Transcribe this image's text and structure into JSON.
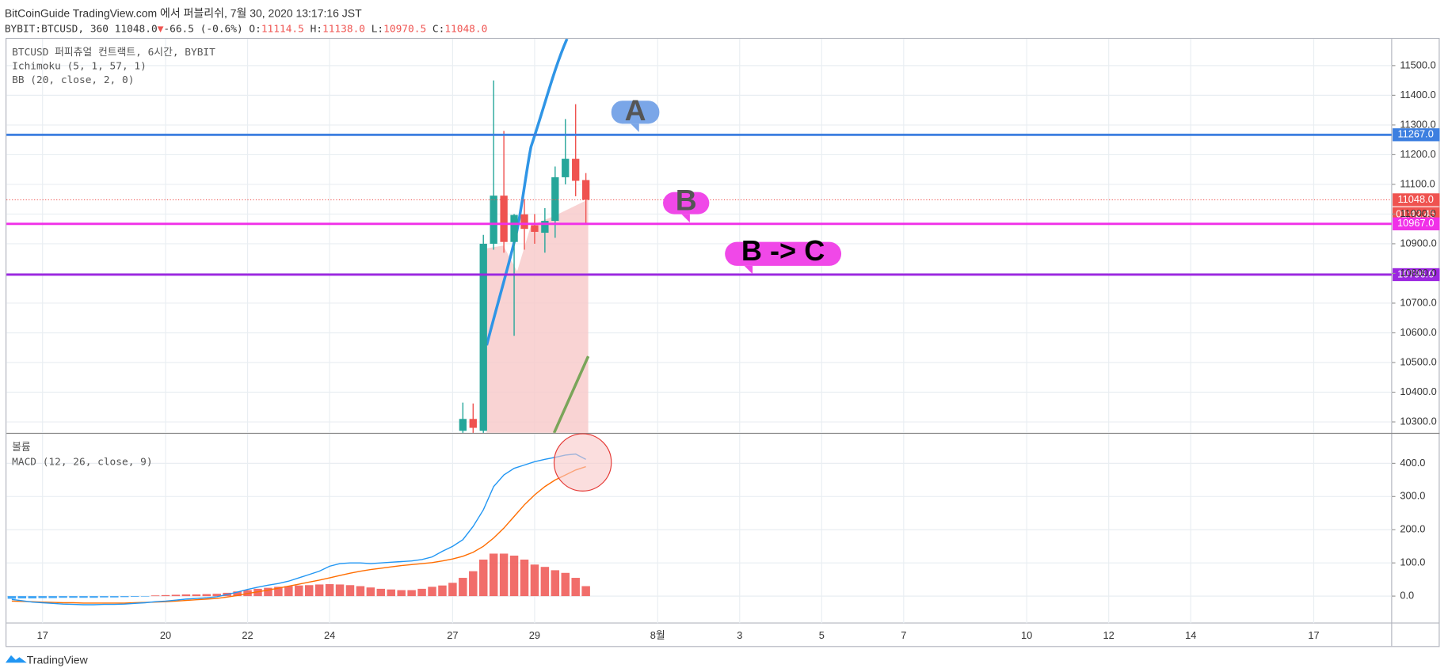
{
  "header": {
    "line1": "BitCoinGuide TradingView.com 에서 퍼블리쉬, 7월 30, 2020 13:17:16 JST",
    "symbol": "BYBIT:BTCUSD, 360 11048.0",
    "arrow": "▼",
    "change": "-66.5 (-0.6%)",
    "o_label": "O:",
    "o": "11114.5",
    "h_label": "H:",
    "h": "11138.0",
    "l_label": "L:",
    "l": "10970.5",
    "c_label": "C:",
    "c": "11048.0"
  },
  "legend": [
    "BTCUSD 퍼피츄얼 컨트랙트, 6시간, BYBIT",
    "Ichimoku (5, 1, 57, 1)",
    "BB (20, close, 2, 0)"
  ],
  "annotations": [
    "A",
    "B",
    "B -> C"
  ],
  "footer": "TradingView",
  "chart_data": {
    "type": "candlestick",
    "up_color": "#26a69a",
    "down_color": "#ef5350",
    "grid": true,
    "x": [
      27.25,
      27.5,
      27.75,
      28,
      28.25,
      28.5,
      28.75,
      29,
      29.25,
      29.5,
      29.75,
      30,
      30.25
    ],
    "open": [
      10270,
      10310,
      10270,
      10900,
      11062,
      10906,
      10999,
      10962,
      10937,
      10977,
      11124,
      11186,
      11114.5
    ],
    "high": [
      10365,
      10362,
      10930,
      11450,
      11280,
      11000,
      11050,
      11000,
      11020,
      11160,
      11320,
      11370,
      11138
    ],
    "low": [
      10250,
      10240,
      10250,
      10880,
      10870,
      10590,
      10880,
      10900,
      10870,
      10920,
      11100,
      11060,
      10970.5
    ],
    "close": [
      10310,
      10280,
      10900,
      11062,
      10906,
      10997,
      10950,
      10940,
      10977,
      11124,
      11186,
      11112,
      11048
    ],
    "xlim": [
      16.12,
      49.9
    ],
    "xticks": [
      17,
      20,
      22,
      24,
      27,
      29,
      {
        "value": 32,
        "label": "8월"
      },
      {
        "value": 34,
        "label": "3"
      },
      {
        "value": 36,
        "label": "5"
      },
      {
        "value": 38,
        "label": "7"
      },
      {
        "value": 41,
        "label": "10"
      },
      {
        "value": 43,
        "label": "12"
      },
      {
        "value": 45,
        "label": "14"
      },
      {
        "value": 48,
        "label": "17"
      }
    ],
    "ylim": [
      10263,
      11590
    ],
    "yticks": [
      {
        "value": 11500,
        "label": "11500.0"
      },
      {
        "value": 11400,
        "label": "11400.0"
      },
      {
        "value": 11300,
        "label": "11300.0"
      },
      {
        "value": 11200,
        "label": "11200.0"
      },
      {
        "value": 11100,
        "label": "11100.0"
      },
      {
        "value": 11000,
        "label": "11000.0"
      },
      {
        "value": 10900,
        "label": "10900.0"
      },
      {
        "value": 10800,
        "label": "10800.0"
      },
      {
        "value": 10700,
        "label": "10700.0"
      },
      {
        "value": 10600,
        "label": "10600.0"
      },
      {
        "value": 10500,
        "label": "10500.0"
      },
      {
        "value": 10400,
        "label": "10400.0"
      },
      {
        "value": 10300,
        "label": "10300.0"
      }
    ],
    "hlines": [
      {
        "value": 11267,
        "label": "11267.0",
        "color": "#3d7fe0"
      },
      {
        "value": 11048,
        "label": "11048.0",
        "color": "#ef5350",
        "dotted": true
      },
      {
        "value": 10967,
        "label": "10967.0",
        "color": "#f030e8"
      },
      {
        "value": 10796,
        "label": "10796.0",
        "color": "#9c27e0"
      }
    ],
    "countdown": "01:42:45",
    "macd": {
      "title": "MACD (12, 26, close, 9)",
      "volume_title": "볼륨",
      "ylim": [
        -81,
        489
      ],
      "yticks": [
        {
          "value": 400,
          "label": "400.0"
        },
        {
          "value": 300,
          "label": "300.0"
        },
        {
          "value": 200,
          "label": "200.0"
        },
        {
          "value": 100,
          "label": "100.0"
        },
        {
          "value": 0,
          "label": "0.0"
        }
      ],
      "x": [
        16.25,
        16.5,
        16.75,
        17,
        17.25,
        17.5,
        17.75,
        18,
        18.25,
        18.5,
        18.75,
        19,
        19.25,
        19.5,
        19.75,
        20,
        20.25,
        20.5,
        20.75,
        21,
        21.25,
        21.5,
        21.75,
        22,
        22.25,
        22.5,
        22.75,
        23,
        23.25,
        23.5,
        23.75,
        24,
        24.25,
        24.5,
        24.75,
        25,
        25.25,
        25.5,
        25.75,
        26,
        26.25,
        26.5,
        26.75,
        27,
        27.25,
        27.5,
        27.75,
        28,
        28.25,
        28.5,
        28.75,
        29,
        29.25,
        29.5,
        29.75,
        30,
        30.25
      ],
      "macd_color": "#2196f3",
      "signal_color": "#ff6d00",
      "macd_line": [
        -10,
        -14,
        -18,
        -20,
        -22,
        -24,
        -25,
        -26,
        -26,
        -25,
        -25,
        -24,
        -22,
        -20,
        -17,
        -15,
        -12,
        -9,
        -7,
        -5,
        -2,
        5,
        12,
        20,
        27,
        33,
        38,
        45,
        55,
        65,
        75,
        90,
        98,
        100,
        100,
        98,
        100,
        102,
        104,
        106,
        110,
        118,
        135,
        150,
        170,
        210,
        260,
        330,
        365,
        385,
        395,
        405,
        412,
        418,
        425,
        428,
        412
      ],
      "signal": [
        -15,
        -16,
        -17,
        -18,
        -19,
        -20,
        -20,
        -21,
        -21,
        -21,
        -21,
        -21,
        -20,
        -19,
        -18,
        -17,
        -15,
        -13,
        -11,
        -9,
        -7,
        -3,
        2,
        8,
        13,
        18,
        24,
        30,
        36,
        42,
        48,
        55,
        62,
        69,
        75,
        80,
        84,
        88,
        92,
        95,
        98,
        101,
        106,
        112,
        120,
        132,
        150,
        175,
        205,
        240,
        275,
        305,
        330,
        350,
        365,
        380,
        390
      ],
      "histogram": [
        -8,
        -7,
        -7,
        -6,
        -6,
        -5,
        -5,
        -5,
        -5,
        -4,
        -4,
        -3,
        -2,
        -1,
        2,
        3,
        4,
        5,
        5,
        6,
        7,
        10,
        14,
        18,
        22,
        25,
        28,
        30,
        32,
        33,
        35,
        36,
        35,
        33,
        30,
        26,
        22,
        20,
        18,
        18,
        22,
        28,
        32,
        40,
        55,
        75,
        110,
        128,
        128,
        122,
        110,
        95,
        88,
        78,
        70,
        55,
        30
      ]
    }
  }
}
